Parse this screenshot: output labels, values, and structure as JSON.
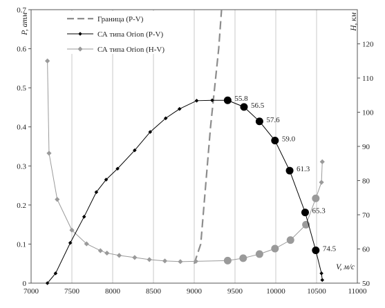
{
  "chart_data": {
    "type": "line",
    "xlabel": "V, м/с",
    "ylabel_left": "P, атм",
    "ylabel_right": "H, км",
    "xlim": [
      7000,
      11000
    ],
    "ylim_left": [
      0,
      0.7
    ],
    "ylim_right": [
      50,
      130
    ],
    "xticks": [
      7000,
      7500,
      8000,
      8500,
      9000,
      9500,
      10000,
      10500,
      11000
    ],
    "yticks_left": [
      "0",
      "0.1",
      "0.2",
      "0.3",
      "0.4",
      "0.5",
      "0.6",
      "0.7"
    ],
    "yticks_right": [
      "50",
      "60",
      "70",
      "80",
      "90",
      "100",
      "110",
      "120"
    ],
    "grid": "vertical",
    "legend_position": "top-left",
    "legend": [
      "Граница (P-V)",
      "СА типа Orion (P-V)",
      "СА типа Orion (H-V)"
    ],
    "series": [
      {
        "name": "Граница (P-V)",
        "axis": "left",
        "color": "#8c8c8c",
        "style": "dashed",
        "points": [
          [
            9000,
            0.05
          ],
          [
            9080,
            0.1
          ],
          [
            9120,
            0.2
          ],
          [
            9160,
            0.3
          ],
          [
            9200,
            0.4
          ],
          [
            9250,
            0.5
          ],
          [
            9300,
            0.6
          ],
          [
            9335,
            0.7
          ]
        ]
      },
      {
        "name": "СА типа Orion (P-V)",
        "axis": "left",
        "color": "#000000",
        "points": [
          [
            7200,
            0.0
          ],
          [
            7300,
            0.025
          ],
          [
            7480,
            0.103
          ],
          [
            7650,
            0.17
          ],
          [
            7800,
            0.233
          ],
          [
            7920,
            0.265
          ],
          [
            8060,
            0.293
          ],
          [
            8270,
            0.34
          ],
          [
            8460,
            0.387
          ],
          [
            8650,
            0.422
          ],
          [
            8820,
            0.446
          ],
          [
            9030,
            0.467
          ],
          [
            9220,
            0.468
          ],
          [
            9410,
            0.468
          ],
          [
            9610,
            0.451
          ],
          [
            9800,
            0.414
          ],
          [
            9990,
            0.365
          ],
          [
            10170,
            0.288
          ],
          [
            10360,
            0.181
          ],
          [
            10490,
            0.084
          ],
          [
            10560,
            0.025
          ],
          [
            10570,
            0.008
          ]
        ]
      },
      {
        "name": "СА типа Orion (H-V)",
        "axis": "right",
        "color": "#8c8c8c",
        "points": [
          [
            7200,
            115
          ],
          [
            7220,
            88
          ],
          [
            7320,
            74.5
          ],
          [
            7500,
            65.5
          ],
          [
            7680,
            61.5
          ],
          [
            7850,
            59.5
          ],
          [
            7930,
            58.8
          ],
          [
            8080,
            58.1
          ],
          [
            8270,
            57.5
          ],
          [
            8450,
            56.9
          ],
          [
            8640,
            56.5
          ],
          [
            8830,
            56.3
          ],
          [
            9020,
            56.4
          ],
          [
            9410,
            56.6
          ],
          [
            9600,
            57.3
          ],
          [
            9800,
            58.5
          ],
          [
            9990,
            60.1
          ],
          [
            10180,
            62.6
          ],
          [
            10370,
            67.1
          ],
          [
            10490,
            74.8
          ],
          [
            10560,
            79.5
          ],
          [
            10570,
            85.5
          ]
        ]
      }
    ],
    "annotations": [
      {
        "text": "55.8",
        "x": 9410,
        "y": 0.468
      },
      {
        "text": "56.5",
        "x": 9610,
        "y": 0.451
      },
      {
        "text": "57.6",
        "x": 9800,
        "y": 0.414
      },
      {
        "text": "59.0",
        "x": 9990,
        "y": 0.365
      },
      {
        "text": "61.3",
        "x": 10170,
        "y": 0.288
      },
      {
        "text": "65.3",
        "x": 10360,
        "y": 0.181
      },
      {
        "text": "74.5",
        "x": 10490,
        "y": 0.084
      }
    ]
  }
}
